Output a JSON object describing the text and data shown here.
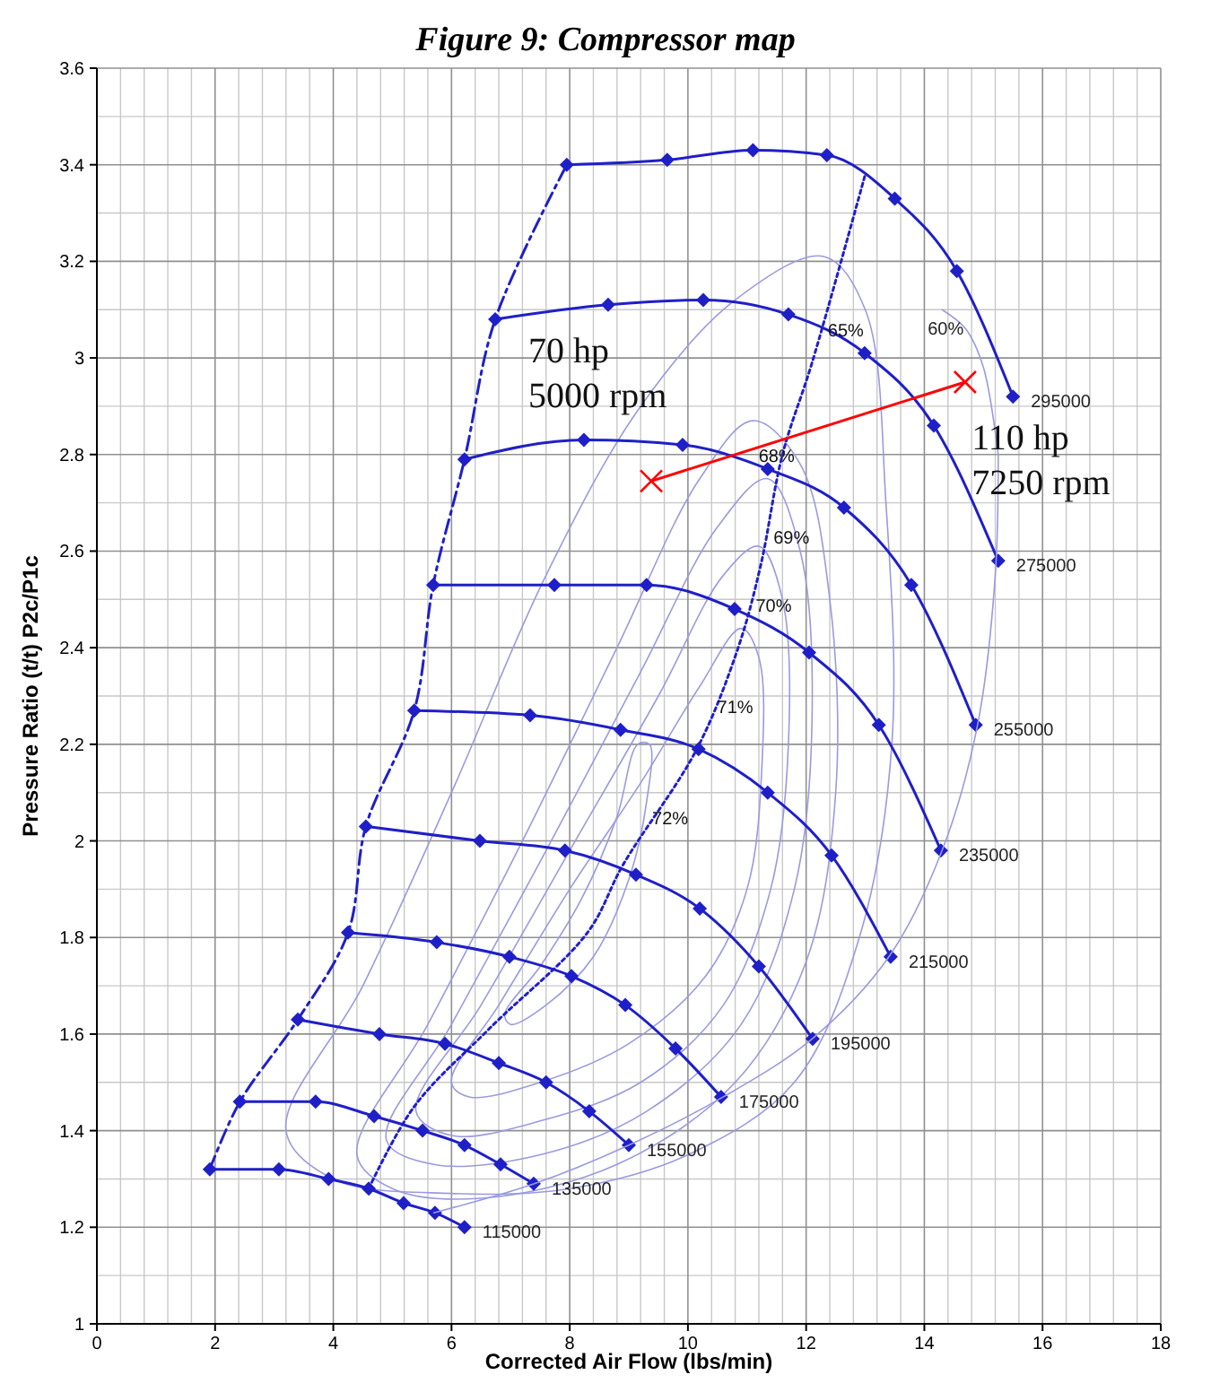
{
  "chart_data": {
    "type": "line",
    "title": "Figure 9: Compressor map",
    "xlabel": "Corrected Air Flow (lbs/min)",
    "ylabel": "Pressure Ratio (t/t) P2c/P1c",
    "xlim": [
      0,
      18
    ],
    "xticks": [
      0,
      2,
      4,
      6,
      8,
      10,
      12,
      14,
      16,
      18
    ],
    "ylim": [
      1,
      3.6
    ],
    "yticks": [
      1,
      1.2,
      1.4,
      1.6,
      1.8,
      2,
      2.2,
      2.4,
      2.6,
      2.8,
      3,
      3.2,
      3.4,
      3.6
    ],
    "grid": true,
    "marker": "diamond",
    "line_style": "solid",
    "series": [
      {
        "name": "295000",
        "color": "#1f1fc8",
        "x": [
          7.95,
          9.65,
          11.1,
          12.35,
          13.5,
          14.55,
          15.5
        ],
        "values": [
          3.4,
          3.41,
          3.43,
          3.42,
          3.33,
          3.18,
          2.92
        ]
      },
      {
        "name": "275000",
        "color": "#1f1fc8",
        "x": [
          6.74,
          8.65,
          10.26,
          11.7,
          12.99,
          14.16,
          15.25
        ],
        "values": [
          3.08,
          3.11,
          3.12,
          3.09,
          3.01,
          2.86,
          2.58
        ]
      },
      {
        "name": "255000",
        "color": "#1f1fc8",
        "x": [
          6.22,
          8.24,
          9.91,
          11.35,
          12.64,
          13.78,
          14.87
        ],
        "values": [
          2.79,
          2.83,
          2.82,
          2.77,
          2.69,
          2.53,
          2.24
        ]
      },
      {
        "name": "235000",
        "color": "#1f1fc8",
        "x": [
          5.69,
          7.74,
          9.3,
          10.79,
          12.05,
          13.23,
          14.28
        ],
        "values": [
          2.53,
          2.53,
          2.53,
          2.48,
          2.39,
          2.24,
          1.98
        ]
      },
      {
        "name": "215000",
        "color": "#1f1fc8",
        "x": [
          5.37,
          7.33,
          8.86,
          10.18,
          11.35,
          12.43,
          13.43
        ],
        "values": [
          2.27,
          2.26,
          2.23,
          2.19,
          2.1,
          1.97,
          1.76
        ]
      },
      {
        "name": "195000",
        "color": "#1f1fc8",
        "x": [
          4.55,
          6.48,
          7.92,
          9.12,
          10.2,
          11.2,
          12.11
        ],
        "values": [
          2.03,
          2.0,
          1.98,
          1.93,
          1.86,
          1.74,
          1.59
        ]
      },
      {
        "name": "175000",
        "color": "#1f1fc8",
        "x": [
          4.25,
          5.75,
          6.98,
          8.03,
          8.94,
          9.79,
          10.56
        ],
        "values": [
          1.81,
          1.79,
          1.76,
          1.72,
          1.66,
          1.57,
          1.47
        ]
      },
      {
        "name": "155000",
        "color": "#1f1fc8",
        "x": [
          3.4,
          4.78,
          5.89,
          6.8,
          7.6,
          8.33,
          9.0
        ],
        "values": [
          1.63,
          1.6,
          1.58,
          1.54,
          1.5,
          1.44,
          1.37
        ]
      },
      {
        "name": "135000",
        "color": "#1f1fc8",
        "x": [
          2.42,
          3.7,
          4.69,
          5.51,
          6.22,
          6.83,
          7.39
        ],
        "values": [
          1.46,
          1.46,
          1.43,
          1.4,
          1.37,
          1.33,
          1.29
        ]
      },
      {
        "name": "115000",
        "color": "#1f1fc8",
        "x": [
          1.91,
          3.08,
          3.92,
          4.6,
          5.19,
          5.72,
          6.22
        ],
        "values": [
          1.32,
          1.32,
          1.3,
          1.28,
          1.25,
          1.23,
          1.2
        ]
      },
      {
        "color": "#1f1fc8",
        "marker": "none",
        "line_style": "dashed",
        "x": [
          1.91,
          2.42,
          3.4,
          4.25,
          4.55,
          5.37,
          5.69,
          6.22,
          6.74,
          7.95
        ],
        "values": [
          1.32,
          1.46,
          1.63,
          1.81,
          2.03,
          2.27,
          2.53,
          2.79,
          3.08,
          3.4
        ]
      },
      {
        "color": "#1f1fc8",
        "marker": "none",
        "line_style": "dotted",
        "x": [
          4.6,
          5.37,
          6.63,
          8.3,
          8.9,
          10.15,
          10.85,
          11.23,
          11.6,
          12.1,
          13.0
        ],
        "values": [
          1.28,
          1.45,
          1.61,
          1.81,
          1.95,
          2.19,
          2.4,
          2.57,
          2.8,
          2.99,
          3.38
        ]
      },
      {
        "color": "#9a9ae0",
        "marker": "none",
        "x": [
          5.7,
          7.4,
          9.0,
          10.6,
          12.1,
          13.4,
          14.3,
          14.9,
          15.2,
          15.25
        ],
        "values": [
          1.23,
          1.29,
          1.37,
          1.47,
          1.59,
          1.76,
          1.98,
          2.24,
          2.55,
          2.8
        ]
      },
      {
        "name": "60%",
        "color": "#9a9ae0",
        "marker": "none",
        "x": [
          15.25,
          15.0,
          14.7,
          14.3
        ],
        "values": [
          2.8,
          2.98,
          3.06,
          3.1
        ]
      },
      {
        "color": "#ff0000",
        "marker": "cross",
        "x": [
          9.38,
          14.69
        ],
        "values": [
          2.745,
          2.95
        ]
      }
    ],
    "annotations": [
      "70 hp\n5000 rpm",
      "110 hp\n7250 rpm",
      "65%",
      "68%",
      "69%",
      "70%",
      "71%",
      "72%"
    ]
  }
}
